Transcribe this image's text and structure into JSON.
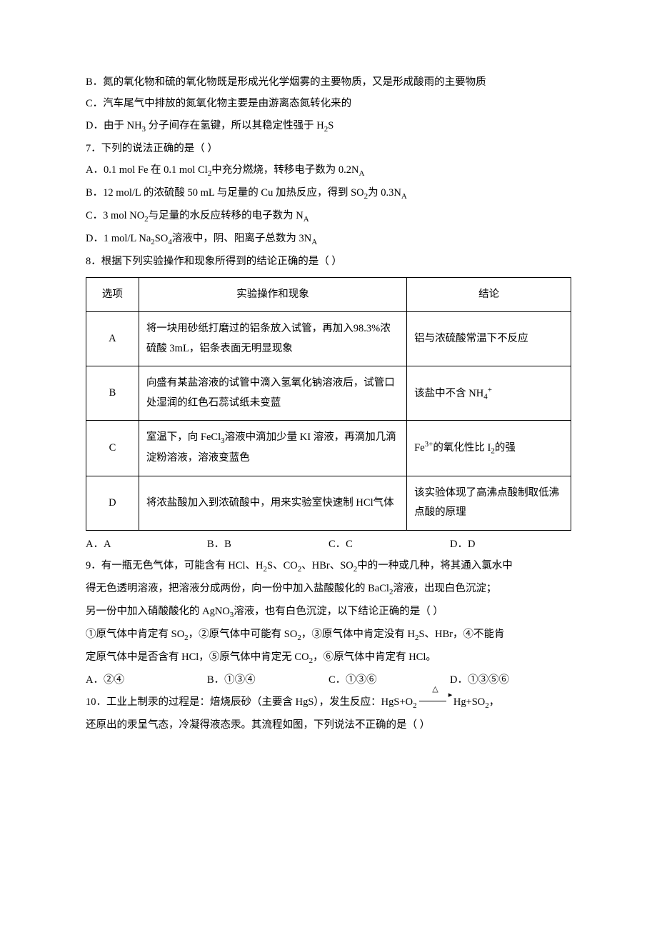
{
  "lines": {
    "lB": "B．氮的氧化物和硫的氧化物既是形成光化学烟雾的主要物质，又是形成酸雨的主要物质",
    "lC": "C．汽车尾气中排放的氮氧化物主要是由游离态氮转化来的",
    "lD_a": "D．由于 NH",
    "lD_b": "分子间存在氢键，所以其稳定性强于 H",
    "lD_c": "S",
    "q7": "7．下列的说法正确的是（   ）",
    "q7A_a": "A．0.1 mol Fe 在 0.1 mol Cl",
    "q7A_b": "中充分燃烧，转移电子数为 0.2N",
    "q7B_a": "B．12 mol/L 的浓硫酸 50 mL 与足量的 Cu 加热反应，得到 SO",
    "q7B_b": "为 0.3N",
    "q7C_a": "C．3 mol NO",
    "q7C_b": "与足量的水反应转移的电子数为 N",
    "q7D_a": "D．1 mol/L Na",
    "q7D_b": "SO",
    "q7D_c": "溶液中，阴、阳离子总数为 3N",
    "q8": "8．根据下列实验操作和现象所得到的结论正确的是（   ）"
  },
  "table": {
    "headers": {
      "c1": "选项",
      "c2": "实验操作和现象",
      "c3": "结论"
    },
    "rows": [
      {
        "opt": "A",
        "op": "将一块用砂纸打磨过的铝条放入试管，再加入98.3%浓硫酸 3mL，铝条表面无明显现象",
        "res": "铝与浓硫酸常温下不反应"
      },
      {
        "opt": "B",
        "op": "向盛有某盐溶液的试管中滴入氢氧化钠溶液后，试管口处湿润的红色石蕊试纸未变蓝",
        "res_a": "该盐中不含 NH",
        "res_b": ""
      },
      {
        "opt": "C",
        "op_a": "室温下，向 FeCl",
        "op_b": "溶液中滴加少量 KI 溶液，再滴加几滴淀粉溶液，溶液变蓝色",
        "res_a": "Fe",
        "res_b": "的氧化性比 I",
        "res_c": "的强"
      },
      {
        "opt": "D",
        "op": "将浓盐酸加入到浓硫酸中，用来实验室快速制 HCl气体",
        "res": "该实验体现了高沸点酸制取低沸点酸的原理"
      }
    ]
  },
  "q8_options": {
    "a": "A．A",
    "b": "B．B",
    "c": "C．C",
    "d": "D．D"
  },
  "q9": {
    "l1_a": "9．有一瓶无色气体，可能含有 HCl、H",
    "l1_b": "S、CO",
    "l1_c": "、HBr、SO",
    "l1_d": "中的一种或几种，将其通入氯水中",
    "l2_a": "得无色透明溶液，把溶液分成两份，向一份中加入盐酸酸化的 BaCl",
    "l2_b": "溶液，出现白色沉淀；",
    "l3_a": "另一份中加入硝酸酸化的 AgNO",
    "l3_b": "溶液，也有白色沉淀，以下结论正确的是（   ）",
    "l4_a": "①原气体中肯定有 SO",
    "l4_b": "，②原气体中可能有 SO",
    "l4_c": "，③原气体中肯定没有 H",
    "l4_d": "S、HBr，④不能肯",
    "l5_a": "定原气体中是否含有 HCl，⑤原气体中肯定无 CO",
    "l5_b": "，⑥原气体中肯定有 HCl。",
    "opts": {
      "a": "A．②④",
      "b": "B．①③④",
      "c": "C．①③⑥",
      "d": "D．①③⑤⑥"
    }
  },
  "q10": {
    "l1_a": "10．工业上制汞的过程是：焙烧辰砂（主要含 HgS），发生反应：HgS+O",
    "l1_b": "Hg+SO",
    "l1_c": "，",
    "l2": "还原出的汞呈气态，冷凝得液态汞。其流程如图，下列说法不正确的是（   ）"
  },
  "subs": {
    "s2": "2",
    "s3": "3",
    "s4": "4",
    "sA": "A",
    "plus": "+",
    "p3": "3+"
  },
  "delta": "△"
}
